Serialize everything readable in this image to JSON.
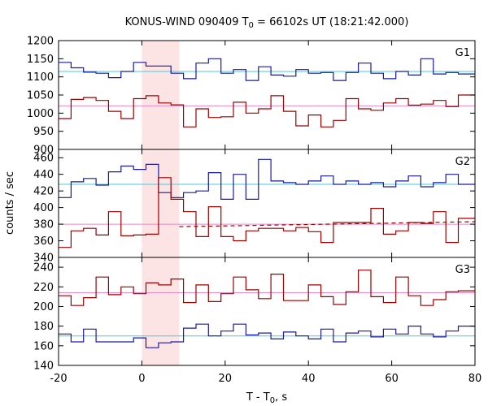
{
  "chart_data": {
    "type": "line",
    "title_main": "KONUS-WIND 090409 T",
    "title_sub": "0",
    "title_tail": " = 66102s UT (18:21:42.000)",
    "xlabel_main": "T - T",
    "xlabel_sub": "0",
    "xlabel_tail": ", s",
    "ylabel": "counts / sec",
    "xlim": [
      -20,
      80
    ],
    "xticks": [
      "-20",
      "0",
      "20",
      "40",
      "60",
      "80"
    ],
    "highlight_interval": [
      0,
      9
    ],
    "colors": {
      "blue": "#1a1aa0",
      "red": "#9b0000",
      "cyan": "#48c8dc",
      "pink": "#e889c3",
      "highlight": "#fde4e4"
    },
    "x_edges": [
      -20,
      -17,
      -14,
      -11,
      -8,
      -5,
      -2,
      1,
      4,
      7,
      10,
      13,
      16,
      19,
      22,
      25,
      28,
      31,
      34,
      37,
      40,
      43,
      46,
      49,
      52,
      55,
      58,
      61,
      64,
      67,
      70,
      73,
      76,
      79,
      80
    ],
    "panels": [
      {
        "label": "G1",
        "ylim": [
          900,
          1200
        ],
        "yticks": [
          "900",
          "950",
          "1000",
          "1050",
          "1100",
          "1150",
          "1200"
        ],
        "series": [
          {
            "color": "blue",
            "values": [
              1140,
              1125,
              1113,
              1110,
              1098,
              1115,
              1140,
              1130,
              1130,
              1110,
              1095,
              1138,
              1150,
              1110,
              1120,
              1090,
              1128,
              1105,
              1102,
              1120,
              1110,
              1112,
              1090,
              1112,
              1138,
              1110,
              1095,
              1115,
              1105,
              1150,
              1108,
              1112,
              1108,
              1108
            ]
          },
          {
            "color": "red",
            "values": [
              985,
              1038,
              1043,
              1035,
              1005,
              985,
              1040,
              1048,
              1028,
              1023,
              962,
              1012,
              988,
              990,
              1030,
              1000,
              1012,
              1048,
              1005,
              965,
              995,
              962,
              980,
              1040,
              1012,
              1008,
              1028,
              1040,
              1022,
              1025,
              1035,
              1018,
              1050,
              1050
            ]
          }
        ],
        "refs": [
          {
            "color": "cyan",
            "value": 1115
          },
          {
            "color": "pink",
            "value": 1020
          }
        ]
      },
      {
        "label": "G2",
        "ylim": [
          340,
          470
        ],
        "yticks": [
          "340",
          "360",
          "380",
          "400",
          "420",
          "440",
          "460"
        ],
        "series": [
          {
            "color": "blue",
            "values": [
              412,
              431,
              435,
              427,
              443,
              450,
              446,
              452,
              418,
              412,
              418,
              420,
              442,
              410,
              440,
              410,
              458,
              432,
              430,
              428,
              432,
              438,
              428,
              432,
              428,
              430,
              425,
              432,
              438,
              425,
              430,
              440,
              428,
              428
            ]
          },
          {
            "color": "red",
            "values": [
              352,
              372,
              375,
              367,
              395,
              366,
              367,
              368,
              436,
              410,
              395,
              365,
              401,
              365,
              360,
              372,
              375,
              375,
              372,
              376,
              371,
              358,
              382,
              382,
              382,
              399,
              368,
              372,
              382,
              381,
              395,
              358,
              387,
              387
            ]
          }
        ],
        "refs": [
          {
            "color": "cyan",
            "value": 428
          },
          {
            "color": "pink",
            "value": 380
          }
        ],
        "dashed_fit": {
          "color": "red",
          "x": [
            9,
            80
          ],
          "y": [
            377,
            383
          ]
        }
      },
      {
        "label": "G3",
        "ylim": [
          140,
          250
        ],
        "yticks": [
          "140",
          "160",
          "180",
          "200",
          "220",
          "240"
        ],
        "series": [
          {
            "color": "red",
            "values": [
              211,
              201,
              209,
              230,
              212,
              220,
              213,
              224,
              222,
              228,
              204,
              222,
              205,
              213,
              230,
              217,
              208,
              233,
              206,
              206,
              222,
              210,
              202,
              215,
              237,
              210,
              204,
              230,
              211,
              201,
              207,
              215,
              216,
              216
            ]
          },
          {
            "color": "blue",
            "values": [
              172,
              164,
              177,
              164,
              164,
              164,
              168,
              158,
              163,
              164,
              178,
              182,
              170,
              175,
              182,
              171,
              173,
              167,
              174,
              170,
              167,
              177,
              164,
              173,
              175,
              169,
              177,
              172,
              180,
              172,
              169,
              175,
              180,
              180
            ]
          }
        ],
        "refs": [
          {
            "color": "pink",
            "value": 214
          },
          {
            "color": "cyan",
            "value": 170
          }
        ]
      }
    ]
  }
}
